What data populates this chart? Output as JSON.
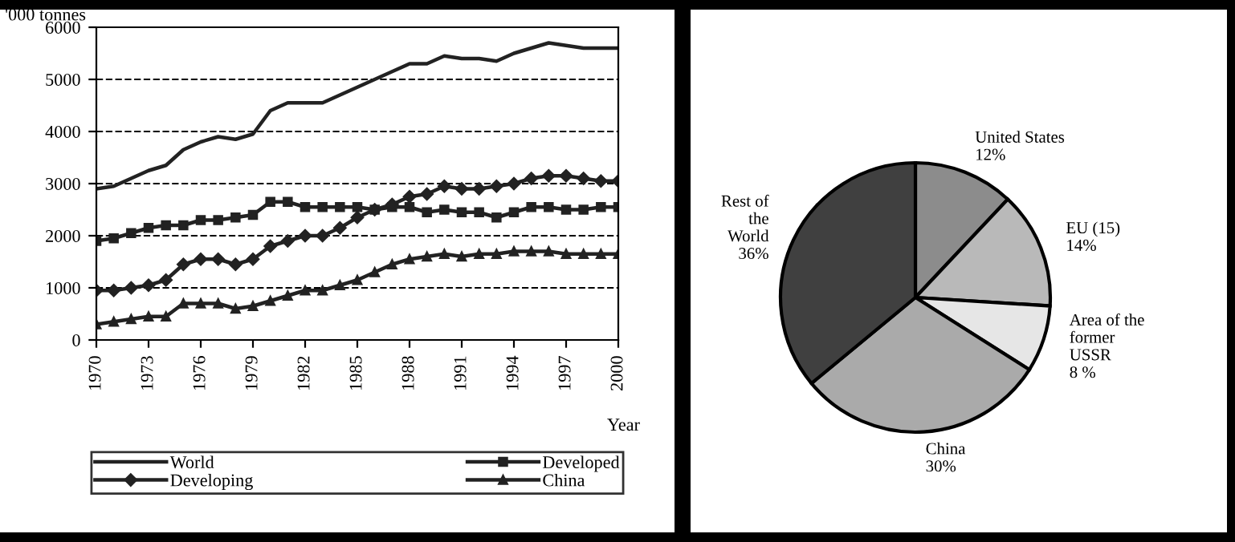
{
  "chart_data": [
    {
      "type": "line",
      "ylabel": "'000 tonnes",
      "xlabel": "Year",
      "x": [
        1970,
        1971,
        1972,
        1973,
        1974,
        1975,
        1976,
        1977,
        1978,
        1979,
        1980,
        1981,
        1982,
        1983,
        1984,
        1985,
        1986,
        1987,
        1988,
        1989,
        1990,
        1991,
        1992,
        1993,
        1994,
        1995,
        1996,
        1997,
        1998,
        1999,
        2000
      ],
      "series": [
        {
          "name": "World",
          "color": "#222222",
          "marker": "none",
          "values": [
            2900,
            2950,
            3100,
            3250,
            3350,
            3650,
            3800,
            3900,
            3850,
            3950,
            4400,
            4550,
            4550,
            4550,
            4700,
            4850,
            5000,
            5150,
            5300,
            5300,
            5450,
            5400,
            5400,
            5350,
            5500,
            5600,
            5700,
            5650,
            5600,
            5600,
            5600
          ]
        },
        {
          "name": "Developed",
          "color": "#222222",
          "marker": "square",
          "values": [
            1900,
            1950,
            2050,
            2150,
            2200,
            2200,
            2300,
            2300,
            2350,
            2400,
            2650,
            2650,
            2550,
            2550,
            2550,
            2550,
            2500,
            2550,
            2550,
            2450,
            2500,
            2450,
            2450,
            2350,
            2450,
            2550,
            2550,
            2500,
            2500,
            2550,
            2550
          ]
        },
        {
          "name": "Developing",
          "color": "#222222",
          "marker": "diamond",
          "values": [
            950,
            950,
            1000,
            1050,
            1150,
            1450,
            1550,
            1550,
            1450,
            1550,
            1800,
            1900,
            2000,
            2000,
            2150,
            2350,
            2500,
            2600,
            2750,
            2800,
            2950,
            2900,
            2900,
            2950,
            3000,
            3100,
            3150,
            3150,
            3100,
            3050,
            3050
          ]
        },
        {
          "name": "China",
          "color": "#222222",
          "marker": "triangle",
          "values": [
            300,
            350,
            400,
            450,
            450,
            700,
            700,
            700,
            600,
            650,
            750,
            850,
            950,
            950,
            1050,
            1150,
            1300,
            1450,
            1550,
            1600,
            1650,
            1600,
            1650,
            1650,
            1700,
            1700,
            1700,
            1650,
            1650,
            1650,
            1650
          ]
        }
      ],
      "xlim": [
        1970,
        2000
      ],
      "xticks": [
        1970,
        1973,
        1976,
        1979,
        1982,
        1985,
        1988,
        1991,
        1994,
        1997,
        2000
      ],
      "ylim": [
        0,
        6000
      ],
      "yticks": [
        0,
        1000,
        2000,
        3000,
        4000,
        5000,
        6000
      ],
      "grid": "y",
      "legend": "bottom",
      "line_style": "solid"
    },
    {
      "type": "pie",
      "categories": [
        "United States",
        "EU (15)",
        "Area of the\nformer\nUSSR",
        "China",
        "Rest of\nthe\nWorld"
      ],
      "values": [
        12,
        14,
        8,
        30,
        36
      ],
      "value_labels": [
        "12%",
        "14%",
        "8 %",
        "30%",
        "36%"
      ],
      "colors": [
        "#8c8c8c",
        "#b9b9b9",
        "#e6e6e6",
        "#aaaaaa",
        "#404040"
      ],
      "legend": false
    }
  ]
}
